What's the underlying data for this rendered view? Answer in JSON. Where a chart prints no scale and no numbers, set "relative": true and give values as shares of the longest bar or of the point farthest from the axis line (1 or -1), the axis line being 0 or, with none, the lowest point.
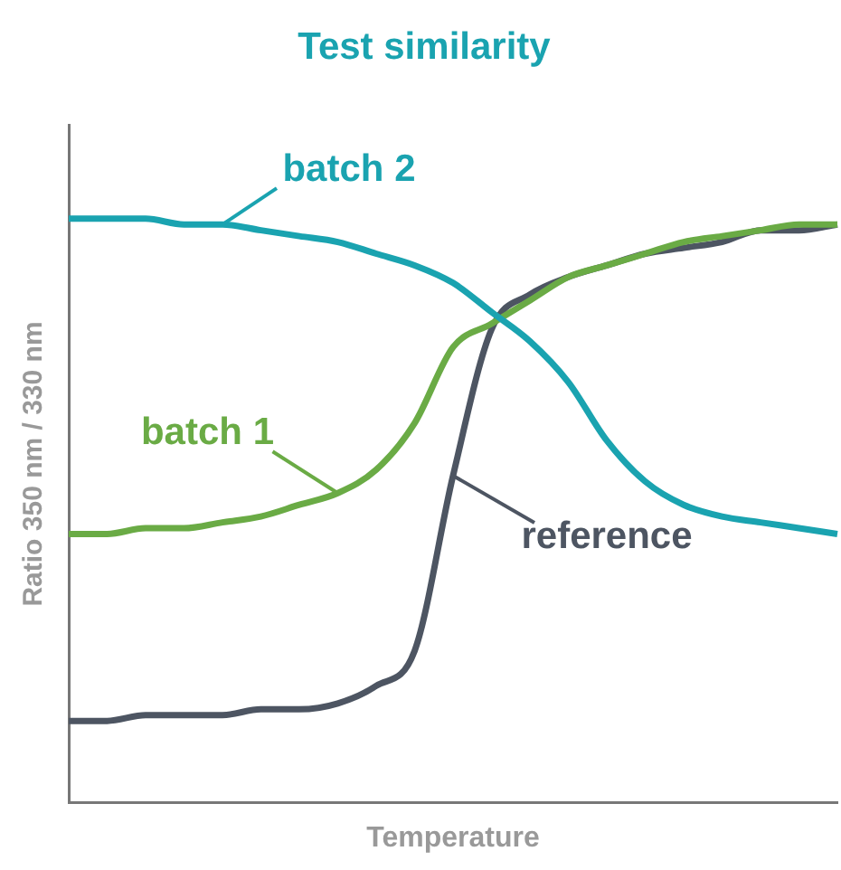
{
  "chart_data": {
    "type": "line",
    "title": "Test similarity",
    "xlabel": "Temperature",
    "ylabel": "Ratio 350 nm / 330 nm",
    "relative": true,
    "grid": false,
    "marker": "none",
    "line_style": "solid",
    "categories": [
      null,
      null,
      null,
      null,
      null,
      null,
      null,
      null,
      null,
      null,
      null,
      null,
      null,
      null,
      null,
      null,
      null,
      null,
      null,
      null,
      null
    ],
    "series": [
      {
        "name": "batch 2",
        "color": "#1aa3b0",
        "values": [
          1.0,
          1.0,
          1.0,
          0.99,
          0.99,
          0.98,
          0.97,
          0.96,
          0.94,
          0.92,
          0.89,
          0.84,
          0.79,
          0.72,
          0.62,
          0.55,
          0.51,
          0.49,
          0.48,
          0.47,
          0.46
        ]
      },
      {
        "name": "batch 1",
        "color": "#6aab45",
        "values": [
          0.46,
          0.46,
          0.47,
          0.47,
          0.48,
          0.49,
          0.51,
          0.53,
          0.57,
          0.65,
          0.78,
          0.82,
          0.86,
          0.9,
          0.92,
          0.94,
          0.96,
          0.97,
          0.98,
          0.99,
          0.99
        ]
      },
      {
        "name": "reference",
        "color": "#4d5562",
        "values": [
          0.14,
          0.14,
          0.15,
          0.15,
          0.15,
          0.16,
          0.16,
          0.17,
          0.2,
          0.26,
          0.56,
          0.81,
          0.87,
          0.9,
          0.92,
          0.94,
          0.95,
          0.96,
          0.98,
          0.98,
          0.99
        ]
      }
    ]
  }
}
